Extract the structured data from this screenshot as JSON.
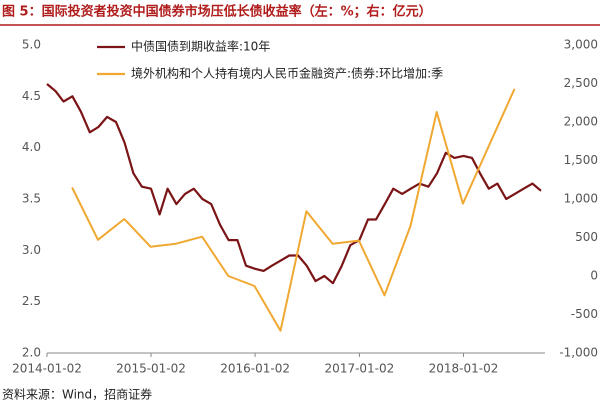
{
  "chart_data": {
    "type": "line",
    "title": "图 5：国际投资者投资中国债券市场压低长债收益率（左：%；右：亿元）",
    "source": "资料来源：Wind，招商证券",
    "xlim": [
      "2014-01-02",
      "2018-10-15"
    ],
    "xticks": [
      "2014-01-02",
      "2015-01-02",
      "2016-01-02",
      "2017-01-02",
      "2018-01-02"
    ],
    "ylim": [
      2,
      5
    ],
    "yticks": [
      {
        "value": 2,
        "label": "2.0"
      },
      {
        "value": 2.5,
        "label": "2.5"
      },
      {
        "value": 3,
        "label": "3.0"
      },
      {
        "value": 3.5,
        "label": "3.5"
      },
      {
        "value": 4,
        "label": "4.0"
      },
      {
        "value": 4.5,
        "label": "4.5"
      },
      {
        "value": 5,
        "label": "5.0"
      }
    ],
    "y2lim": [
      -1000,
      3000
    ],
    "y2ticks": [
      {
        "value": -1000,
        "label": "-1,000"
      },
      -500,
      0,
      500,
      {
        "value": 1000,
        "label": "1,000"
      },
      {
        "value": 1500,
        "label": "1,500"
      },
      {
        "value": 2000,
        "label": "2,000"
      },
      {
        "value": 2500,
        "label": "2,500"
      },
      {
        "value": 3000,
        "label": "3,000"
      }
    ],
    "grid": false,
    "legend": "upper left",
    "series": [
      {
        "name": "中债国债到期收益率:10年",
        "color": "#7a1416",
        "x": [
          "2014-01-02",
          "2014-02-01",
          "2014-03-01",
          "2014-04-01",
          "2014-05-01",
          "2014-06-01",
          "2014-07-01",
          "2014-08-01",
          "2014-09-01",
          "2014-10-01",
          "2014-11-01",
          "2014-12-01",
          "2015-01-02",
          "2015-02-01",
          "2015-03-01",
          "2015-04-01",
          "2015-05-01",
          "2015-06-01",
          "2015-07-01",
          "2015-08-01",
          "2015-09-01",
          "2015-10-01",
          "2015-11-01",
          "2015-12-01",
          "2016-01-02",
          "2016-02-01",
          "2016-03-01",
          "2016-04-01",
          "2016-05-01",
          "2016-06-01",
          "2016-07-01",
          "2016-08-01",
          "2016-09-01",
          "2016-10-01",
          "2016-11-01",
          "2016-12-01",
          "2017-01-02",
          "2017-02-01",
          "2017-03-01",
          "2017-04-01",
          "2017-05-01",
          "2017-06-01",
          "2017-07-01",
          "2017-08-01",
          "2017-09-01",
          "2017-10-01",
          "2017-11-01",
          "2017-12-01",
          "2018-01-02",
          "2018-02-01",
          "2018-03-01",
          "2018-04-01",
          "2018-05-01",
          "2018-06-01",
          "2018-07-01",
          "2018-08-01",
          "2018-09-01",
          "2018-10-01"
        ],
        "values": [
          4.62,
          4.55,
          4.45,
          4.5,
          4.35,
          4.15,
          4.2,
          4.3,
          4.25,
          4.05,
          3.75,
          3.62,
          3.6,
          3.35,
          3.6,
          3.45,
          3.55,
          3.6,
          3.5,
          3.45,
          3.25,
          3.1,
          3.1,
          2.85,
          2.82,
          2.8,
          2.85,
          2.9,
          2.95,
          2.95,
          2.85,
          2.7,
          2.75,
          2.68,
          2.85,
          3.05,
          3.1,
          3.3,
          3.3,
          3.45,
          3.6,
          3.55,
          3.6,
          3.65,
          3.62,
          3.75,
          3.95,
          3.9,
          3.92,
          3.9,
          3.75,
          3.6,
          3.65,
          3.5,
          3.55,
          3.6,
          3.65,
          3.58
        ]
      },
      {
        "name": "境外机构和个人持有境内人民币金融资产:债券:环比增加:季",
        "color": "#f0a830",
        "axis": "y2",
        "x": [
          "2014-03-31",
          "2014-06-30",
          "2014-09-30",
          "2014-12-31",
          "2015-03-31",
          "2015-06-30",
          "2015-09-30",
          "2015-12-31",
          "2016-03-31",
          "2016-06-30",
          "2016-09-30",
          "2016-12-31",
          "2017-03-31",
          "2017-06-30",
          "2017-09-30",
          "2017-12-31",
          "2018-06-30"
        ],
        "values": [
          1150,
          470,
          740,
          380,
          420,
          510,
          0,
          -130,
          -710,
          840,
          420,
          460,
          -250,
          650,
          2130,
          940,
          2430
        ]
      }
    ]
  }
}
